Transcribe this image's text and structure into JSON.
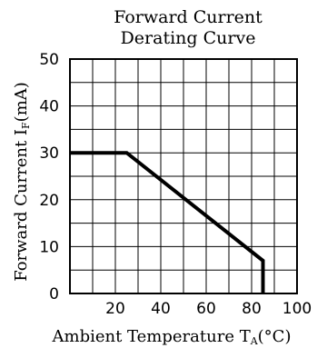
{
  "chart_data": {
    "type": "line",
    "title_lines": [
      "Forward Current",
      "Derating Curve"
    ],
    "xlabel": {
      "prefix": "Ambient Temperature T",
      "subscript": "A",
      "suffix": "(°C)"
    },
    "ylabel": {
      "prefix": "Forward Current I",
      "subscript": "F",
      "suffix": "(mA)"
    },
    "xlim": [
      0,
      100
    ],
    "ylim": [
      0,
      50
    ],
    "x_tick_labels": [
      "20",
      "40",
      "60",
      "80",
      "100"
    ],
    "x_tick_values": [
      20,
      40,
      60,
      80,
      100
    ],
    "y_tick_labels": [
      "0",
      "10",
      "20",
      "30",
      "40",
      "50"
    ],
    "y_tick_values": [
      0,
      10,
      20,
      30,
      40,
      50
    ],
    "grid": true,
    "series": [
      {
        "x": [
          0,
          25,
          85,
          85
        ],
        "y": [
          30,
          30,
          7,
          0
        ]
      }
    ],
    "colors": {
      "line": "#000000",
      "grid": "#000000",
      "background": "#ffffff"
    }
  }
}
